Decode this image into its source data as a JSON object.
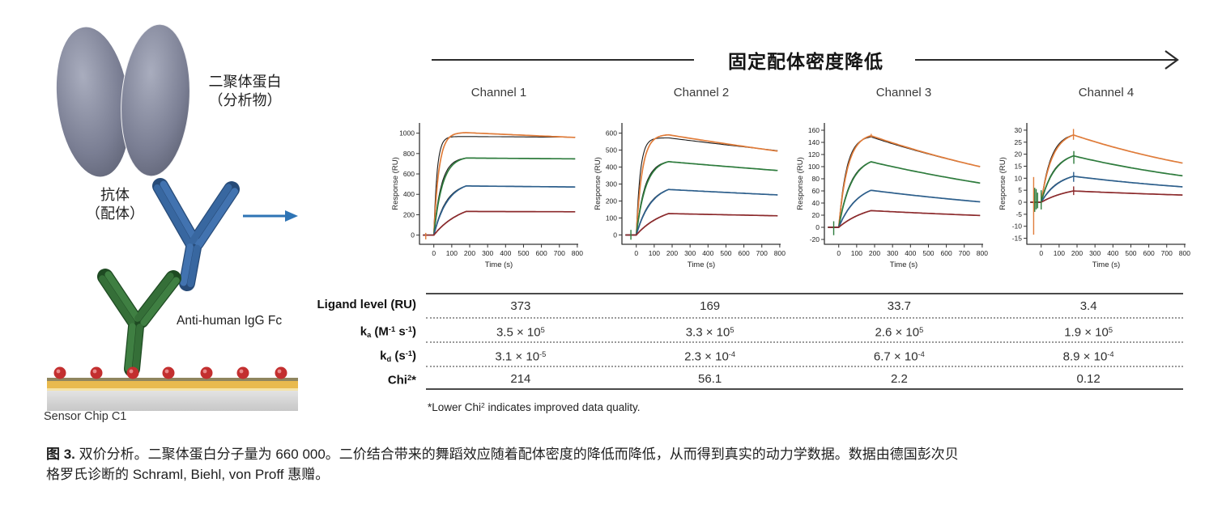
{
  "palette": {
    "orange": "#E07C3A",
    "green": "#2E7C3D",
    "blue": "#2D5F8C",
    "darkred": "#8C2A2C",
    "fit_black": "#1b1b1b",
    "axis": "#333333",
    "arrow_blue": "#2E74B5",
    "gold": "#E9BA4E",
    "dot_red": "#C32F2F",
    "rule_dark": "#4a4a4a"
  },
  "diagram": {
    "analyte_label_line1": "二聚体蛋白",
    "analyte_label_line2": "（分析物）",
    "ligand_label_line1": "抗体",
    "ligand_label_line2": "（配体）",
    "capture_antibody_label": "Anti-human IgG Fc",
    "chip_label": "Sensor Chip C1"
  },
  "flow_arrow": {
    "label": "固定配体密度降低"
  },
  "chart_data": [
    {
      "type": "line",
      "title": "Channel 1",
      "xlabel": "Time (s)",
      "ylabel": "Response (RU)",
      "xlim": [
        -80,
        805
      ],
      "ylim": [
        -90,
        1100
      ],
      "xticks": [
        0,
        100,
        200,
        300,
        400,
        500,
        600,
        700,
        800
      ],
      "yticks": [
        0,
        200,
        400,
        600,
        800,
        1000
      ],
      "assoc_end_s": 180,
      "series": [
        {
          "name": "analyte-conc-1",
          "color": "orange",
          "rise_k": 0.035,
          "peak_RU": 1005,
          "end_RU": 958,
          "fit": {
            "rise_k": 0.055,
            "peak_RU": 967,
            "end_RU": 960
          }
        },
        {
          "name": "analyte-conc-2",
          "color": "green",
          "rise_k": 0.021,
          "peak_RU": 756,
          "end_RU": 748,
          "fit": {
            "rise_k": 0.024,
            "peak_RU": 756,
            "end_RU": 748
          }
        },
        {
          "name": "analyte-conc-3",
          "color": "blue",
          "rise_k": 0.013,
          "peak_RU": 482,
          "end_RU": 472,
          "fit": {
            "rise_k": 0.0145,
            "peak_RU": 482,
            "end_RU": 472
          }
        },
        {
          "name": "analyte-conc-4",
          "color": "darkred",
          "rise_k": 0.0065,
          "peak_RU": 232,
          "end_RU": 229,
          "fit": {
            "rise_k": 0.007,
            "peak_RU": 232,
            "end_RU": 229
          }
        }
      ],
      "noise_spikes": [
        {
          "t": -45,
          "lo": -42,
          "hi": 22,
          "color": "orange"
        }
      ]
    },
    {
      "type": "line",
      "title": "Channel 2",
      "xlabel": "Time (s)",
      "ylabel": "Response (RU)",
      "xlim": [
        -80,
        805
      ],
      "ylim": [
        -55,
        660
      ],
      "xticks": [
        0,
        100,
        200,
        300,
        400,
        500,
        600,
        700,
        800
      ],
      "yticks": [
        0,
        100,
        200,
        300,
        400,
        500,
        600
      ],
      "assoc_end_s": 180,
      "series": [
        {
          "name": "analyte-conc-1",
          "color": "orange",
          "rise_k": 0.03,
          "peak_RU": 590,
          "end_RU": 494,
          "fit": {
            "rise_k": 0.045,
            "peak_RU": 572,
            "end_RU": 497
          }
        },
        {
          "name": "analyte-conc-2",
          "color": "green",
          "rise_k": 0.019,
          "peak_RU": 432,
          "end_RU": 380,
          "fit": {
            "rise_k": 0.021,
            "peak_RU": 432,
            "end_RU": 380
          }
        },
        {
          "name": "analyte-conc-3",
          "color": "blue",
          "rise_k": 0.012,
          "peak_RU": 268,
          "end_RU": 236,
          "fit": {
            "rise_k": 0.013,
            "peak_RU": 268,
            "end_RU": 236
          }
        },
        {
          "name": "analyte-conc-4",
          "color": "darkred",
          "rise_k": 0.0065,
          "peak_RU": 126,
          "end_RU": 113,
          "fit": {
            "rise_k": 0.007,
            "peak_RU": 126,
            "end_RU": 113
          }
        }
      ],
      "noise_spikes": [
        {
          "t": -30,
          "lo": -28,
          "hi": 30,
          "color": "green"
        }
      ]
    },
    {
      "type": "line",
      "title": "Channel 3",
      "xlabel": "Time (s)",
      "ylabel": "Response (RU)",
      "xlim": [
        -80,
        805
      ],
      "ylim": [
        -28,
        172
      ],
      "xticks": [
        0,
        100,
        200,
        300,
        400,
        500,
        600,
        700,
        800
      ],
      "yticks": [
        -20,
        0,
        20,
        40,
        60,
        80,
        100,
        120,
        140,
        160
      ],
      "assoc_end_s": 180,
      "series": [
        {
          "name": "analyte-conc-1",
          "color": "orange",
          "rise_k": 0.02,
          "peak_RU": 151,
          "end_RU": 100,
          "fit": {
            "rise_k": 0.023,
            "peak_RU": 149,
            "end_RU": 100
          }
        },
        {
          "name": "analyte-conc-2",
          "color": "green",
          "rise_k": 0.014,
          "peak_RU": 108,
          "end_RU": 73,
          "fit": {
            "rise_k": 0.015,
            "peak_RU": 108,
            "end_RU": 73
          }
        },
        {
          "name": "analyte-conc-3",
          "color": "blue",
          "rise_k": 0.0095,
          "peak_RU": 61,
          "end_RU": 42,
          "fit": {
            "rise_k": 0.01,
            "peak_RU": 61,
            "end_RU": 42
          }
        },
        {
          "name": "analyte-conc-4",
          "color": "darkred",
          "rise_k": 0.006,
          "peak_RU": 27.5,
          "end_RU": 19.5,
          "fit": {
            "rise_k": 0.0065,
            "peak_RU": 27.5,
            "end_RU": 19.5
          }
        }
      ],
      "noise_spikes": [
        {
          "t": -28,
          "lo": -13,
          "hi": 10,
          "color": "green"
        },
        {
          "t": 181,
          "lo": 148,
          "hi": 154,
          "color": "orange"
        }
      ]
    },
    {
      "type": "line",
      "title": "Channel 4",
      "xlabel": "Time (s)",
      "ylabel": "Response (RU)",
      "xlim": [
        -80,
        805
      ],
      "ylim": [
        -17.5,
        33
      ],
      "xticks": [
        0,
        100,
        200,
        300,
        400,
        500,
        600,
        700,
        800
      ],
      "yticks": [
        -15,
        -10,
        -5,
        0,
        5,
        10,
        15,
        20,
        25,
        30
      ],
      "assoc_end_s": 180,
      "series": [
        {
          "name": "analyte-conc-1",
          "color": "orange",
          "rise_k": 0.016,
          "peak_RU": 28,
          "end_RU": 16.3,
          "fit": {
            "rise_k": 0.018,
            "peak_RU": 28,
            "end_RU": 16.3
          }
        },
        {
          "name": "analyte-conc-2",
          "color": "green",
          "rise_k": 0.013,
          "peak_RU": 19.3,
          "end_RU": 11,
          "fit": {
            "rise_k": 0.014,
            "peak_RU": 19.3,
            "end_RU": 11
          }
        },
        {
          "name": "analyte-conc-3",
          "color": "blue",
          "rise_k": 0.01,
          "peak_RU": 10.8,
          "end_RU": 6.4,
          "fit": {
            "rise_k": 0.011,
            "peak_RU": 10.8,
            "end_RU": 6.4
          }
        },
        {
          "name": "analyte-conc-4",
          "color": "darkred",
          "rise_k": 0.006,
          "peak_RU": 4.7,
          "end_RU": 3.0,
          "fit": {
            "rise_k": 0.0065,
            "peak_RU": 4.7,
            "end_RU": 3.0
          }
        }
      ],
      "noise_spikes": [
        {
          "t": -42,
          "lo": -13.5,
          "hi": 10.5,
          "color": "orange"
        },
        {
          "t": -36,
          "lo": -4,
          "hi": 6,
          "color": "green"
        },
        {
          "t": -28,
          "lo": -3,
          "hi": 5.5,
          "color": "green"
        },
        {
          "t": -20,
          "lo": -2.5,
          "hi": 4,
          "color": "green"
        },
        {
          "t": 0,
          "lo": -3,
          "hi": 5,
          "color": "green"
        },
        {
          "t": 180,
          "lo": 26,
          "hi": 30.5,
          "color": "orange"
        },
        {
          "t": 182,
          "lo": 16,
          "hi": 21.3,
          "color": "green"
        },
        {
          "t": 181,
          "lo": 8.5,
          "hi": 12.6,
          "color": "blue"
        },
        {
          "t": 181,
          "lo": 3,
          "hi": 6.6,
          "color": "darkred"
        }
      ]
    }
  ],
  "kinetics_table": {
    "columns": [
      "Channel 1",
      "Channel 2",
      "Channel 3",
      "Channel 4"
    ],
    "rows": [
      {
        "label_parts": [
          {
            "t": "Ligand level (RU)"
          }
        ],
        "values": [
          [
            {
              "t": "373"
            }
          ],
          [
            {
              "t": "169"
            }
          ],
          [
            {
              "t": "33.7"
            }
          ],
          [
            {
              "t": "3.4"
            }
          ]
        ]
      },
      {
        "label_parts": [
          {
            "t": "k"
          },
          {
            "sub": "a"
          },
          {
            "t": " (M"
          },
          {
            "sup": "-1"
          },
          {
            "t": " s"
          },
          {
            "sup": "-1"
          },
          {
            "t": ")"
          }
        ],
        "values": [
          [
            {
              "t": "3.5 × 10"
            },
            {
              "sup": "5"
            }
          ],
          [
            {
              "t": "3.3 × 10"
            },
            {
              "sup": "5"
            }
          ],
          [
            {
              "t": "2.6 × 10"
            },
            {
              "sup": "5"
            }
          ],
          [
            {
              "t": "1.9 × 10"
            },
            {
              "sup": "5"
            }
          ]
        ]
      },
      {
        "label_parts": [
          {
            "t": "k"
          },
          {
            "sub": "d"
          },
          {
            "t": " (s"
          },
          {
            "sup": "-1"
          },
          {
            "t": ")"
          }
        ],
        "values": [
          [
            {
              "t": "3.1 × 10"
            },
            {
              "sup": "-5"
            }
          ],
          [
            {
              "t": "2.3 × 10"
            },
            {
              "sup": "-4"
            }
          ],
          [
            {
              "t": "6.7 × 10"
            },
            {
              "sup": "-4"
            }
          ],
          [
            {
              "t": "8.9 × 10"
            },
            {
              "sup": "-4"
            }
          ]
        ]
      },
      {
        "label_parts": [
          {
            "t": "Chi"
          },
          {
            "sup": "2"
          },
          {
            "t": "*"
          }
        ],
        "values": [
          [
            {
              "t": "214"
            }
          ],
          [
            {
              "t": "56.1"
            }
          ],
          [
            {
              "t": "2.2"
            }
          ],
          [
            {
              "t": "0.12"
            }
          ]
        ]
      }
    ]
  },
  "footnote_parts": [
    {
      "t": "*Lower Chi"
    },
    {
      "sup": "2"
    },
    {
      "t": " indicates improved data quality."
    }
  ],
  "caption_parts": [
    {
      "b": "图 3."
    },
    {
      "t": " 双价分析。二聚体蛋白分子量为 660 000。二价结合带来的舞蹈效应随着配体密度的降低而降低，从而得到真实的动力学数据。数据由德国彭次贝"
    },
    {
      "br": true
    },
    {
      "t": "格罗氏诊断的 Schraml, Biehl, von Proff 惠赠。"
    }
  ]
}
